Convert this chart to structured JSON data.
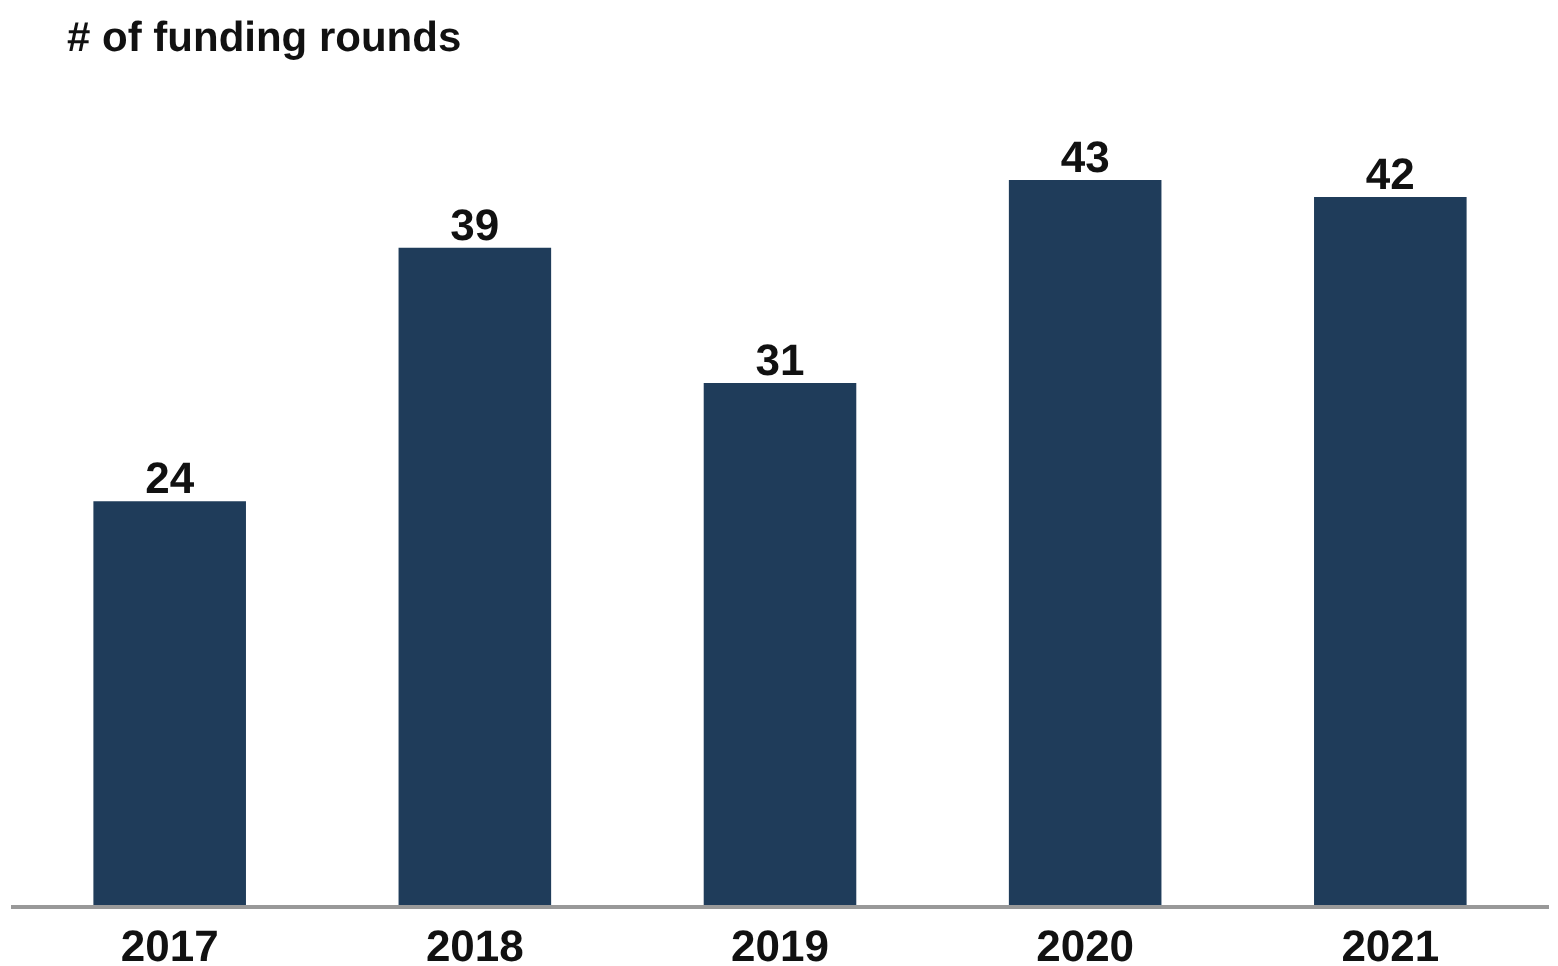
{
  "chart_data": {
    "type": "bar",
    "title": "# of funding rounds",
    "categories": [
      "2017",
      "2018",
      "2019",
      "2020",
      "2021"
    ],
    "values": [
      24,
      39,
      31,
      43,
      42
    ],
    "color": "#1f3c5a",
    "data_labels": true,
    "grid": false
  }
}
